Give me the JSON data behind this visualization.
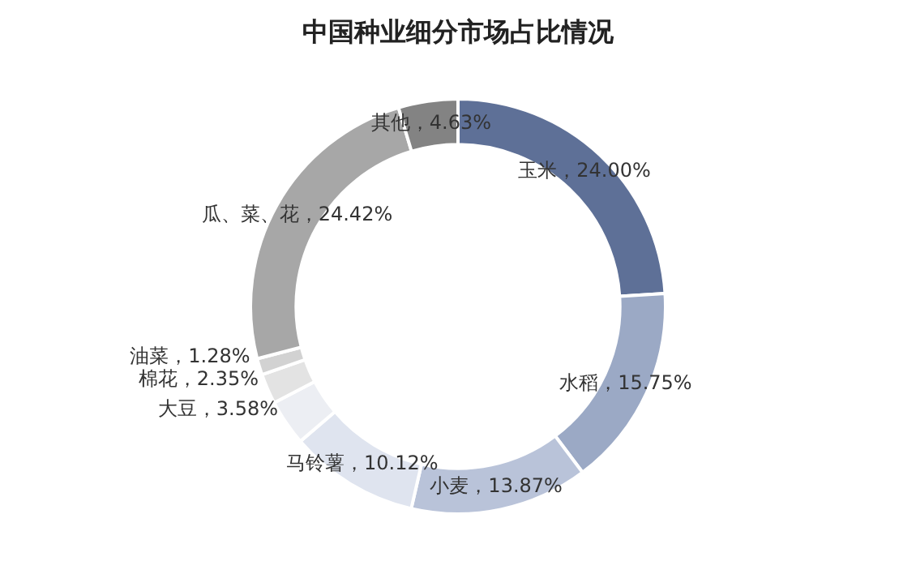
{
  "chart_data": {
    "type": "donut",
    "title": "中国种业细分市场占比情况",
    "categories": [
      "玉米",
      "水稻",
      "小麦",
      "马铃薯",
      "大豆",
      "棉花",
      "油菜",
      "瓜、菜、花",
      "其他"
    ],
    "values": [
      24.0,
      15.75,
      13.87,
      10.12,
      3.58,
      2.35,
      1.28,
      24.42,
      4.63
    ],
    "value_labels": [
      "24.00%",
      "15.75%",
      "13.87%",
      "10.12%",
      "3.58%",
      "2.35%",
      "1.28%",
      "24.42%",
      "4.63%"
    ],
    "colors": [
      "#5e7097",
      "#9ba9c5",
      "#b9c3d9",
      "#dfe4ef",
      "#eceef3",
      "#e3e3e3",
      "#d2d2d2",
      "#a7a7a7",
      "#838383"
    ],
    "legend": false
  }
}
